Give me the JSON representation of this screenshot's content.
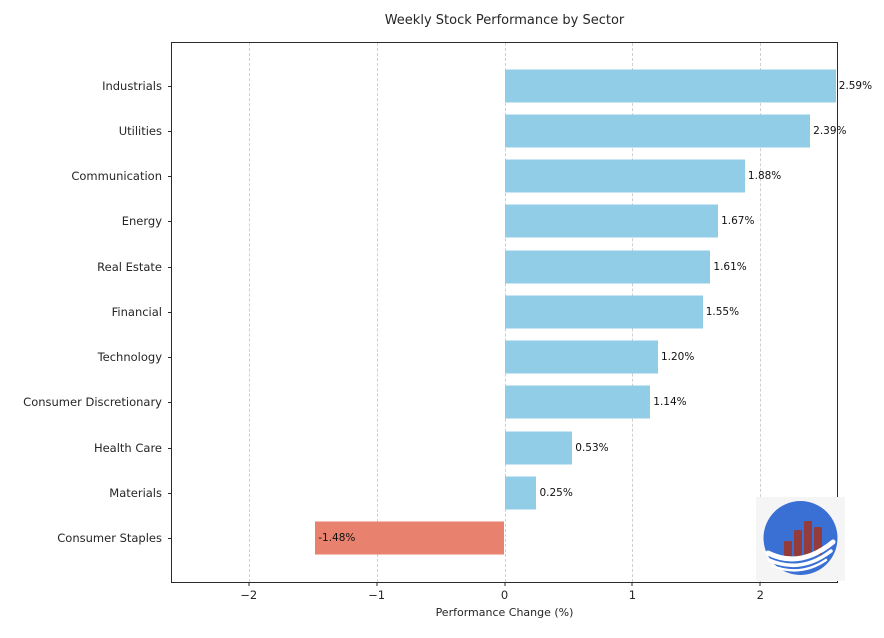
{
  "chart_data": {
    "type": "bar",
    "orientation": "horizontal",
    "title": "Weekly Stock Performance by Sector",
    "xlabel": "Performance Change (%)",
    "categories": [
      "Industrials",
      "Utilities",
      "Communication",
      "Energy",
      "Real Estate",
      "Financial",
      "Technology",
      "Consumer Discretionary",
      "Health Care",
      "Materials",
      "Consumer Staples"
    ],
    "values": [
      2.59,
      2.39,
      1.88,
      1.67,
      1.61,
      1.55,
      1.2,
      1.14,
      0.53,
      0.25,
      -1.48
    ],
    "value_labels": [
      "2.59%",
      "2.39%",
      "1.88%",
      "1.67%",
      "1.61%",
      "1.55%",
      "1.20%",
      "1.14%",
      "0.53%",
      "0.25%",
      "-1.48%"
    ],
    "xlim": [
      -2.6,
      2.6
    ],
    "xticks": [
      -2,
      -1,
      0,
      1,
      2
    ],
    "xtick_labels": [
      "−2",
      "−1",
      "0",
      "1",
      "2"
    ],
    "grid": "vertical-dashed",
    "legend": "none",
    "colors": {
      "positive": "#92cde8",
      "negative": "#e8826e",
      "grid": "#cfcfcf",
      "axis": "#2b2b2b",
      "text": "#262626"
    }
  },
  "logo": {
    "name": "stock-growth-logo",
    "background": "#f5f5f6",
    "circle_color": "#3a6fd4",
    "bar_color": "#943c3c",
    "swoosh_color": "#ffffff"
  }
}
